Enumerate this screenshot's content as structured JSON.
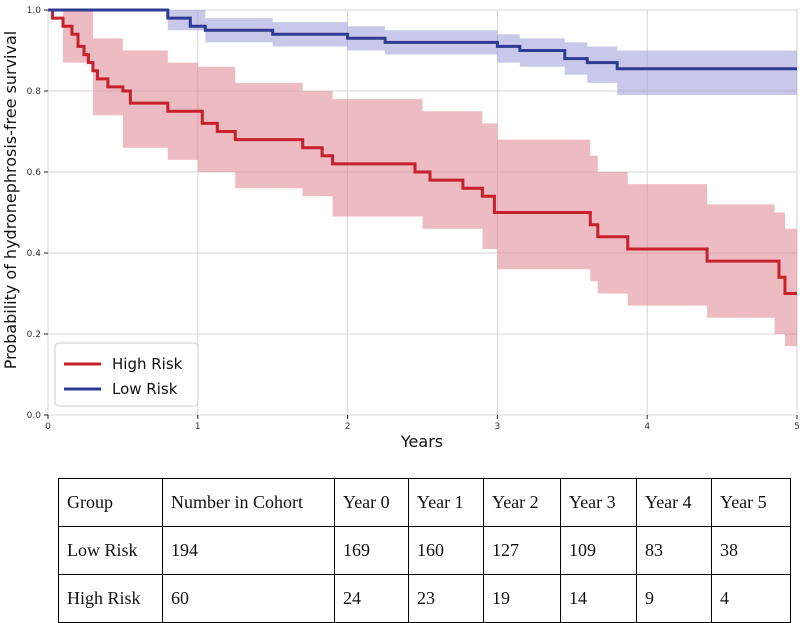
{
  "chart_data": {
    "type": "line",
    "title": "",
    "xlabel": "Years",
    "ylabel": "Probability of hydronephrosis-free survival",
    "xlim": [
      0,
      5
    ],
    "ylim": [
      0,
      1.0
    ],
    "x_ticks": [
      "0",
      "1",
      "2",
      "3",
      "4",
      "5"
    ],
    "y_ticks": [
      "0.0",
      "0.2",
      "0.4",
      "0.6",
      "0.8",
      "1.0"
    ],
    "grid": true,
    "legend_position": "bottom-left",
    "series": [
      {
        "name": "High Risk",
        "color": "#c8202b",
        "band_color": "#dc8590",
        "steps": [
          [
            0,
            1.0
          ],
          [
            0.03,
            0.98
          ],
          [
            0.1,
            0.96
          ],
          [
            0.16,
            0.94
          ],
          [
            0.2,
            0.91
          ],
          [
            0.24,
            0.89
          ],
          [
            0.27,
            0.87
          ],
          [
            0.3,
            0.85
          ],
          [
            0.33,
            0.83
          ],
          [
            0.4,
            0.81
          ],
          [
            0.5,
            0.8
          ],
          [
            0.55,
            0.77
          ],
          [
            0.8,
            0.75
          ],
          [
            1.03,
            0.72
          ],
          [
            1.13,
            0.7
          ],
          [
            1.25,
            0.68
          ],
          [
            1.7,
            0.66
          ],
          [
            1.83,
            0.64
          ],
          [
            1.9,
            0.62
          ],
          [
            2.45,
            0.6
          ],
          [
            2.55,
            0.58
          ],
          [
            2.77,
            0.56
          ],
          [
            2.9,
            0.54
          ],
          [
            2.98,
            0.5
          ],
          [
            3.62,
            0.47
          ],
          [
            3.67,
            0.44
          ],
          [
            3.87,
            0.41
          ],
          [
            4.4,
            0.38
          ],
          [
            4.88,
            0.34
          ],
          [
            4.92,
            0.3
          ]
        ],
        "end": 5.0,
        "lower": [
          [
            0,
            1.0
          ],
          [
            0.1,
            0.87
          ],
          [
            0.3,
            0.74
          ],
          [
            0.5,
            0.66
          ],
          [
            0.8,
            0.63
          ],
          [
            1.0,
            0.6
          ],
          [
            1.25,
            0.56
          ],
          [
            1.7,
            0.54
          ],
          [
            1.9,
            0.49
          ],
          [
            2.5,
            0.46
          ],
          [
            2.9,
            0.41
          ],
          [
            3.0,
            0.36
          ],
          [
            3.62,
            0.33
          ],
          [
            3.67,
            0.3
          ],
          [
            3.87,
            0.27
          ],
          [
            4.4,
            0.24
          ],
          [
            4.85,
            0.2
          ],
          [
            4.92,
            0.17
          ],
          [
            5.0,
            0.17
          ]
        ],
        "upper": [
          [
            0,
            1.0
          ],
          [
            0.1,
            1.0
          ],
          [
            0.3,
            0.93
          ],
          [
            0.5,
            0.9
          ],
          [
            0.8,
            0.87
          ],
          [
            1.0,
            0.86
          ],
          [
            1.25,
            0.82
          ],
          [
            1.7,
            0.8
          ],
          [
            1.9,
            0.78
          ],
          [
            2.5,
            0.75
          ],
          [
            2.9,
            0.72
          ],
          [
            3.0,
            0.68
          ],
          [
            3.62,
            0.64
          ],
          [
            3.67,
            0.6
          ],
          [
            3.87,
            0.57
          ],
          [
            4.4,
            0.52
          ],
          [
            4.85,
            0.5
          ],
          [
            4.92,
            0.46
          ],
          [
            5.0,
            0.46
          ]
        ]
      },
      {
        "name": "Low Risk",
        "color": "#2e3b93",
        "band_color": "#9f9ad8",
        "steps": [
          [
            0,
            1.0
          ],
          [
            0.8,
            0.98
          ],
          [
            0.95,
            0.96
          ],
          [
            1.05,
            0.95
          ],
          [
            1.5,
            0.94
          ],
          [
            2.0,
            0.93
          ],
          [
            2.25,
            0.92
          ],
          [
            3.0,
            0.91
          ],
          [
            3.15,
            0.9
          ],
          [
            3.45,
            0.88
          ],
          [
            3.6,
            0.87
          ],
          [
            3.8,
            0.855
          ]
        ],
        "end": 5.0,
        "lower": [
          [
            0,
            1.0
          ],
          [
            0.8,
            0.95
          ],
          [
            1.05,
            0.92
          ],
          [
            1.5,
            0.91
          ],
          [
            2.0,
            0.9
          ],
          [
            2.25,
            0.89
          ],
          [
            3.0,
            0.87
          ],
          [
            3.15,
            0.86
          ],
          [
            3.45,
            0.84
          ],
          [
            3.6,
            0.82
          ],
          [
            3.8,
            0.79
          ],
          [
            5.0,
            0.79
          ]
        ],
        "upper": [
          [
            0,
            1.0
          ],
          [
            0.8,
            1.0
          ],
          [
            1.05,
            0.98
          ],
          [
            1.5,
            0.97
          ],
          [
            2.0,
            0.96
          ],
          [
            2.25,
            0.95
          ],
          [
            3.0,
            0.94
          ],
          [
            3.15,
            0.93
          ],
          [
            3.45,
            0.92
          ],
          [
            3.6,
            0.91
          ],
          [
            3.8,
            0.9
          ],
          [
            5.0,
            0.9
          ]
        ]
      }
    ]
  },
  "legend": {
    "high": "High Risk",
    "low": "Low Risk"
  },
  "table": {
    "headers": [
      "Group",
      "Number in Cohort",
      "Year 0",
      "Year 1",
      "Year 2",
      "Year 3",
      "Year 4",
      "Year 5"
    ],
    "rows": [
      [
        "Low Risk",
        "194",
        "169",
        "160",
        "127",
        "109",
        "83",
        "38"
      ],
      [
        "High Risk",
        "60",
        "24",
        "23",
        "19",
        "14",
        "9",
        "4"
      ]
    ]
  }
}
